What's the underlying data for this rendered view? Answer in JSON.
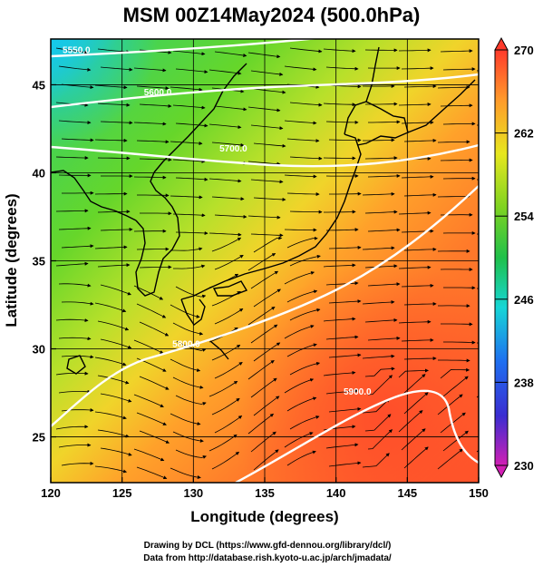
{
  "title": "MSM 00Z14May2024 (500.0hPa)",
  "map": {
    "xlabel": "Longitude (degrees)",
    "ylabel": "Latitude  (degrees)",
    "lon_range": [
      120,
      150
    ],
    "lat_range": [
      22.4,
      47.6
    ],
    "lon_ticks": [
      "120",
      "125",
      "130",
      "135",
      "140",
      "145",
      "150"
    ],
    "lat_ticks": [
      "25",
      "30",
      "35",
      "40",
      "45"
    ],
    "grid": true,
    "field": "temperature (K)",
    "color_scale": [
      "#c51bb6",
      "#3a2dd1",
      "#1f8ff0",
      "#16d6d6",
      "#22c24d",
      "#7ed321",
      "#e7e71f",
      "#ff9a2b",
      "#ff4a2b"
    ]
  },
  "colorbar": {
    "range": [
      230,
      270
    ],
    "ticks": [
      "270",
      "262",
      "254",
      "246",
      "238",
      "230"
    ]
  },
  "contours": [
    {
      "label": "5550.0",
      "lon": 121.8,
      "lat": 46.8
    },
    {
      "label": "5600.0",
      "lon": 127.5,
      "lat": 44.4
    },
    {
      "label": "5700.0",
      "lon": 132.8,
      "lat": 41.2
    },
    {
      "label": "5800.0",
      "lon": 129.5,
      "lat": 30.1
    },
    {
      "label": "5900.0",
      "lon": 141.5,
      "lat": 27.4
    }
  ],
  "credits": {
    "line1": "Drawing by DCL (https://www.gfd-dennou.org/library/dcl/)",
    "line2": "Data from http://database.rish.kyoto-u.ac.jp/arch/jmadata/"
  }
}
